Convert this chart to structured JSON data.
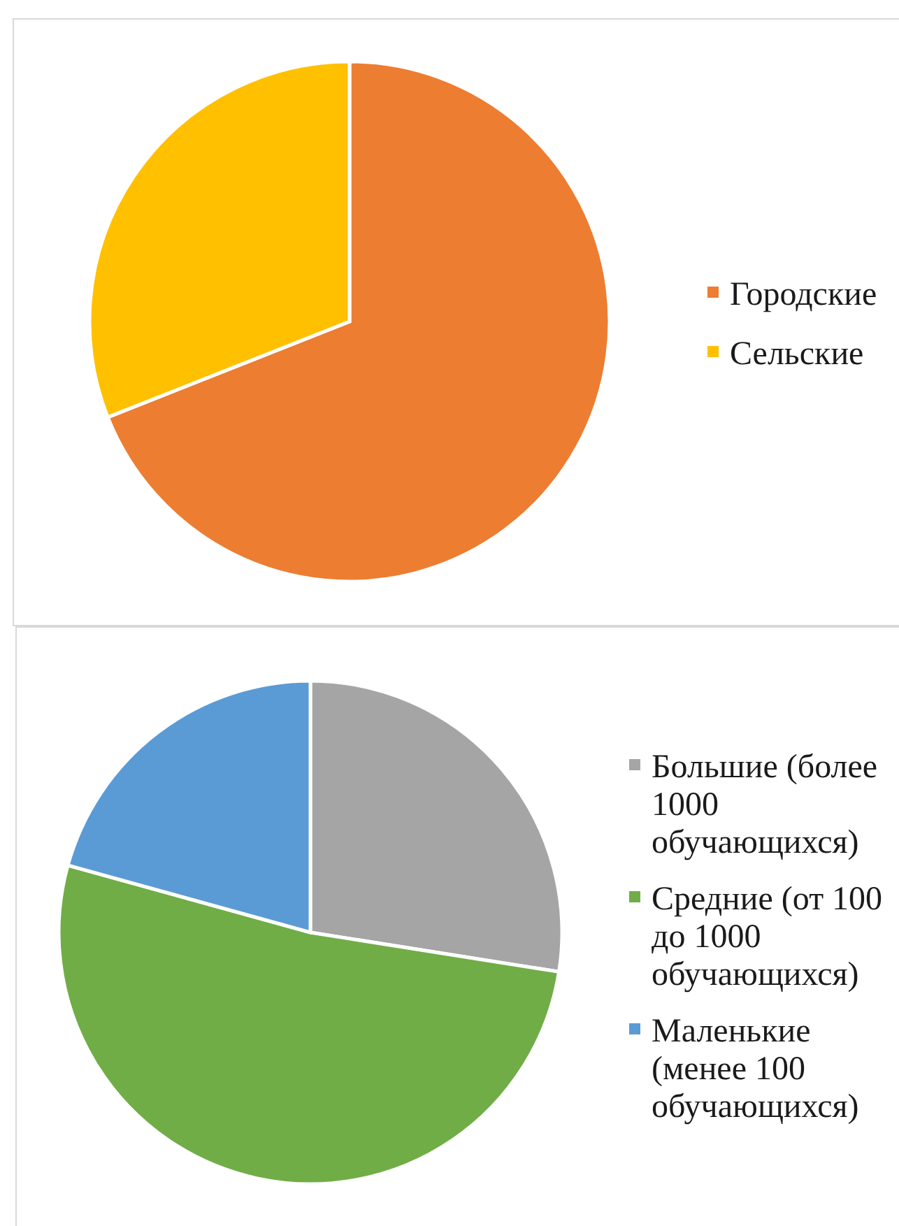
{
  "chart_data": [
    {
      "type": "pie",
      "categories": [
        "Городские",
        "Сельские"
      ],
      "values": [
        69,
        31
      ],
      "colors": [
        "#ed7d31",
        "#ffc000"
      ],
      "legend": "right"
    },
    {
      "type": "pie",
      "categories": [
        "Большие (более 1000 обучающихся)",
        "Средние (от 100 до 1000 обучающихся)",
        "Маленькие (менее 100 обучающихся)"
      ],
      "values": [
        27.5,
        51.8,
        20.7
      ],
      "colors": [
        "#a5a5a5",
        "#70ad47",
        "#5b9bd5"
      ],
      "legend": "right"
    }
  ]
}
